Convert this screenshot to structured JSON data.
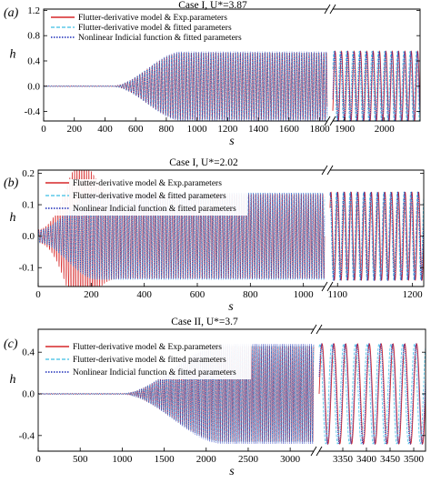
{
  "chart_data": [
    {
      "type": "line",
      "panel_label": "(a)",
      "title": "Case I, U*=3.87",
      "xlabel": "s",
      "ylabel": "h",
      "xlim_left": [
        0,
        1850
      ],
      "xlim_right": [
        1870,
        2090
      ],
      "ylim": [
        -0.55,
        1.22
      ],
      "xticks_left": [
        0,
        200,
        400,
        600,
        800,
        1000,
        1200,
        1400,
        1600,
        1800
      ],
      "xticks_right": [
        1900,
        2000
      ],
      "yticks": [
        -0.4,
        0.0,
        0.4,
        0.8,
        1.2
      ],
      "ytick_labels": [
        "-0.4",
        "0.0",
        "0.4",
        "0.8",
        "1.2"
      ],
      "legend_position": "top-left",
      "oscillation": {
        "period": 16,
        "growth_start": 450,
        "growth_end": 900,
        "initial_amplitude": 0.006,
        "limit_amplitude": 0.55
      },
      "series": [
        {
          "name": "Flutter-derivative model & Exp.parameters",
          "color": "#d62728",
          "dash": "solid",
          "phase": 0.0
        },
        {
          "name": "Flutter-derivative model & fitted parameters",
          "color": "#5bc8e8",
          "dash": "dashed",
          "phase": 1.3
        },
        {
          "name": "Nonlinear Indicial function & fitted parameters",
          "color": "#1a2bb8",
          "dash": "dotted",
          "phase": 0.4
        }
      ]
    },
    {
      "type": "line",
      "panel_label": "(b)",
      "title": "Case I, U*=2.02",
      "xlabel": "s",
      "ylabel": "h",
      "xlim_left": [
        0,
        1080
      ],
      "xlim_right": [
        1090,
        1215
      ],
      "ylim": [
        -0.16,
        0.21
      ],
      "xticks_left": [
        0,
        200,
        400,
        600,
        800,
        1000
      ],
      "xticks_right": [
        1100,
        1200
      ],
      "yticks": [
        -0.1,
        0.0,
        0.1,
        0.2
      ],
      "ytick_labels": [
        "-0.1",
        "0.0",
        "0.1",
        "0.2"
      ],
      "legend_position": "top-left",
      "oscillation": {
        "period": 9,
        "growth_start": 0,
        "growth_end": 220,
        "initial_amplitude": 0.02,
        "limit_amplitude": 0.14
      },
      "series": [
        {
          "name": "Flutter-derivative model & Exp.parameters",
          "color": "#d62728",
          "dash": "solid",
          "phase": 0.0,
          "overshoot": 0.13
        },
        {
          "name": "Flutter-derivative model & fitted parameters",
          "color": "#5bc8e8",
          "dash": "dashed",
          "phase": 1.1
        },
        {
          "name": "Nonlinear Indicial function & fitted parameters",
          "color": "#1a2bb8",
          "dash": "dotted",
          "phase": 0.5
        }
      ]
    },
    {
      "type": "line",
      "panel_label": "(c)",
      "title": "Case II, U*=3.7",
      "xlabel": "s",
      "ylabel": "h",
      "xlim_left": [
        0,
        3280
      ],
      "xlim_right": [
        3300,
        3525
      ],
      "ylim": [
        -0.55,
        0.62
      ],
      "xticks_left": [
        0,
        500,
        1000,
        1500,
        2000,
        2500,
        3000
      ],
      "xticks_right": [
        3350,
        3400,
        3450,
        3500
      ],
      "yticks": [
        -0.4,
        0.0,
        0.4
      ],
      "ytick_labels": [
        "-0.4",
        "0.0",
        "0.4"
      ],
      "legend_position": "top-left",
      "oscillation": {
        "period": 25,
        "growth_start": 1000,
        "growth_end": 2200,
        "initial_amplitude": 0.004,
        "limit_amplitude": 0.48
      },
      "series": [
        {
          "name": "Flutter-derivative model & Exp.parameters",
          "color": "#d62728",
          "dash": "solid",
          "phase": 0.0
        },
        {
          "name": "Flutter-derivative model & fitted parameters",
          "color": "#5bc8e8",
          "dash": "dashed",
          "phase": 1.2
        },
        {
          "name": "Nonlinear Indicial function & fitted parameters",
          "color": "#1a2bb8",
          "dash": "dotted",
          "phase": 0.35
        }
      ]
    }
  ]
}
